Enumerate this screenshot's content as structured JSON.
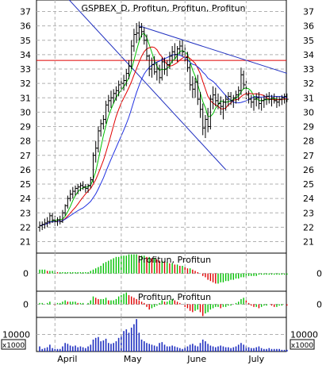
{
  "chart_data": [
    {
      "type": "ohlc",
      "title": "GSPBEX_D, Profitun, Profitun, Profitun",
      "x_ticks": [
        "April",
        "May",
        "June",
        "July"
      ],
      "y_ticks": [
        "21",
        "22",
        "23",
        "24",
        "25",
        "26",
        "27",
        "28",
        "29",
        "30",
        "31",
        "32",
        "33",
        "34",
        "35",
        "36",
        "37"
      ],
      "ylim": [
        20.2,
        37.8
      ],
      "bar_count": 98,
      "price_ohlc": [
        [
          22.0,
          22.4,
          21.7,
          22.1
        ],
        [
          22.1,
          22.4,
          21.8,
          22.2
        ],
        [
          22.2,
          22.6,
          21.9,
          22.3
        ],
        [
          22.3,
          22.7,
          22.0,
          22.4
        ],
        [
          22.4,
          23.0,
          22.2,
          22.8
        ],
        [
          22.8,
          23.0,
          22.3,
          22.5
        ],
        [
          22.5,
          22.8,
          22.1,
          22.4
        ],
        [
          22.4,
          22.7,
          22.1,
          22.5
        ],
        [
          22.5,
          22.8,
          22.2,
          22.4
        ],
        [
          22.4,
          23.2,
          22.3,
          23.0
        ],
        [
          23.0,
          23.6,
          22.8,
          23.5
        ],
        [
          23.5,
          24.2,
          23.3,
          24.0
        ],
        [
          24.0,
          24.6,
          23.8,
          24.3
        ],
        [
          24.3,
          24.8,
          24.0,
          24.5
        ],
        [
          24.5,
          24.9,
          24.2,
          24.7
        ],
        [
          24.7,
          25.0,
          24.3,
          24.8
        ],
        [
          24.8,
          25.1,
          24.5,
          24.9
        ],
        [
          24.9,
          25.2,
          24.6,
          24.8
        ],
        [
          24.8,
          25.0,
          24.4,
          24.7
        ],
        [
          24.7,
          25.0,
          24.4,
          24.9
        ],
        [
          24.9,
          25.5,
          24.7,
          25.3
        ],
        [
          25.3,
          27.2,
          25.1,
          27.0
        ],
        [
          27.0,
          28.0,
          26.5,
          27.5
        ],
        [
          27.5,
          29.0,
          27.2,
          28.7
        ],
        [
          28.7,
          29.5,
          28.3,
          29.2
        ],
        [
          29.2,
          29.8,
          28.8,
          29.5
        ],
        [
          29.5,
          30.8,
          29.2,
          30.5
        ],
        [
          30.5,
          31.2,
          30.0,
          30.8
        ],
        [
          30.8,
          31.5,
          30.3,
          31.0
        ],
        [
          31.0,
          31.6,
          30.6,
          31.3
        ],
        [
          31.3,
          31.8,
          30.8,
          31.5
        ],
        [
          31.5,
          32.2,
          31.1,
          31.9
        ],
        [
          31.9,
          32.4,
          31.4,
          32.0
        ],
        [
          32.0,
          32.6,
          31.5,
          32.2
        ],
        [
          32.2,
          33.0,
          31.8,
          32.7
        ],
        [
          32.7,
          33.6,
          32.3,
          33.2
        ],
        [
          33.2,
          35.0,
          33.0,
          34.6
        ],
        [
          34.6,
          35.8,
          34.2,
          35.4
        ],
        [
          35.4,
          36.2,
          34.8,
          35.5
        ],
        [
          35.5,
          36.3,
          35.0,
          35.9
        ],
        [
          35.9,
          36.2,
          35.2,
          35.6
        ],
        [
          35.6,
          35.9,
          34.7,
          35.0
        ],
        [
          35.0,
          35.4,
          33.6,
          33.9
        ],
        [
          33.9,
          34.0,
          32.5,
          33.0
        ],
        [
          33.0,
          33.8,
          32.4,
          33.3
        ],
        [
          33.3,
          33.9,
          32.6,
          32.8
        ],
        [
          32.8,
          33.5,
          32.2,
          33.0
        ],
        [
          33.0,
          33.3,
          32.0,
          32.4
        ],
        [
          32.4,
          33.8,
          32.2,
          33.5
        ],
        [
          33.5,
          33.8,
          32.6,
          33.0
        ],
        [
          33.0,
          33.6,
          32.5,
          33.3
        ],
        [
          33.3,
          34.2,
          33.0,
          33.9
        ],
        [
          33.9,
          34.6,
          33.4,
          34.2
        ],
        [
          34.2,
          34.8,
          33.7,
          34.0
        ],
        [
          34.0,
          34.6,
          33.5,
          34.4
        ],
        [
          34.4,
          35.0,
          34.0,
          34.6
        ],
        [
          34.6,
          35.0,
          33.9,
          34.2
        ],
        [
          34.2,
          34.7,
          33.5,
          33.8
        ],
        [
          33.8,
          34.2,
          32.8,
          33.1
        ],
        [
          33.1,
          33.4,
          31.5,
          31.9
        ],
        [
          31.9,
          32.5,
          31.0,
          31.6
        ],
        [
          31.6,
          32.4,
          31.0,
          32.1
        ],
        [
          32.1,
          32.6,
          30.5,
          30.9
        ],
        [
          30.9,
          31.4,
          29.6,
          30.2
        ],
        [
          30.2,
          30.6,
          28.4,
          28.9
        ],
        [
          28.9,
          29.8,
          28.2,
          29.5
        ],
        [
          29.5,
          30.3,
          28.6,
          29.0
        ],
        [
          29.0,
          31.2,
          28.8,
          30.9
        ],
        [
          30.9,
          31.8,
          30.2,
          31.2
        ],
        [
          31.2,
          31.7,
          30.4,
          30.8
        ],
        [
          30.8,
          31.3,
          30.2,
          30.6
        ],
        [
          30.6,
          31.1,
          29.8,
          30.4
        ],
        [
          30.4,
          30.9,
          29.5,
          30.7
        ],
        [
          30.7,
          31.2,
          30.1,
          30.9
        ],
        [
          30.9,
          31.4,
          30.4,
          31.1
        ],
        [
          31.1,
          31.4,
          30.5,
          30.8
        ],
        [
          30.8,
          31.2,
          30.3,
          31.0
        ],
        [
          31.0,
          31.5,
          30.6,
          31.2
        ],
        [
          31.2,
          31.8,
          30.8,
          31.5
        ],
        [
          31.5,
          33.1,
          31.2,
          32.6
        ],
        [
          32.6,
          32.9,
          31.6,
          31.9
        ],
        [
          31.9,
          32.2,
          30.9,
          31.2
        ],
        [
          31.2,
          31.5,
          30.6,
          30.9
        ],
        [
          30.9,
          31.2,
          30.3,
          30.7
        ],
        [
          30.7,
          31.1,
          30.1,
          30.9
        ],
        [
          30.9,
          31.3,
          30.4,
          31.0
        ],
        [
          31.0,
          31.4,
          30.2,
          30.6
        ],
        [
          30.6,
          31.0,
          30.1,
          30.8
        ],
        [
          30.8,
          31.2,
          30.3,
          30.9
        ],
        [
          30.9,
          31.3,
          30.5,
          31.1
        ],
        [
          31.1,
          31.4,
          30.6,
          30.9
        ],
        [
          30.9,
          31.2,
          30.4,
          31.0
        ],
        [
          31.0,
          31.3,
          30.6,
          30.8
        ],
        [
          30.8,
          31.1,
          30.3,
          30.7
        ],
        [
          30.7,
          31.1,
          30.4,
          30.9
        ],
        [
          30.9,
          31.2,
          30.5,
          31.0
        ],
        [
          31.0,
          31.3,
          30.6,
          31.1
        ],
        [
          31.1,
          31.3,
          30.7,
          30.9
        ]
      ],
      "horizontal_line": {
        "value": 33.6,
        "color": "#e00000"
      },
      "trendlines": [
        {
          "from": [
            9,
            38.3
          ],
          "to": [
            73,
            26.0
          ],
          "color": "#2030c0"
        },
        {
          "from": [
            39,
            36.0
          ],
          "to": [
            97,
            32.7
          ],
          "color": "#2030c0"
        }
      ],
      "moving_averages": [
        {
          "period": 5,
          "color": "#00c000"
        },
        {
          "period": 10,
          "color": "#e00000"
        },
        {
          "period": 18,
          "color": "#2030e0"
        }
      ]
    },
    {
      "type": "histogram",
      "title": "Profitun, Profitun",
      "y_ticks": [
        "0"
      ],
      "ylim": [
        -1.4,
        1.6
      ],
      "values": [
        0.3,
        0.3,
        0.3,
        0.2,
        0.2,
        0.2,
        0.2,
        0.1,
        0.1,
        0.1,
        0.1,
        0.1,
        0.1,
        0.1,
        0.1,
        0.1,
        0.1,
        0.1,
        0.1,
        0.1,
        0.2,
        0.3,
        0.4,
        0.5,
        0.6,
        0.8,
        0.9,
        1.0,
        1.1,
        1.2,
        1.3,
        1.3,
        1.4,
        1.4,
        1.4,
        1.5,
        1.5,
        1.5,
        1.5,
        1.4,
        1.4,
        1.4,
        1.3,
        1.3,
        1.2,
        1.2,
        1.1,
        1.0,
        1.0,
        0.9,
        0.9,
        0.8,
        0.8,
        0.7,
        0.7,
        0.6,
        0.6,
        0.5,
        0.4,
        0.4,
        0.3,
        0.2,
        0.1,
        0.0,
        -0.2,
        -0.3,
        -0.5,
        -0.6,
        -0.7,
        -0.8,
        -0.8,
        -0.7,
        -0.7,
        -0.6,
        -0.6,
        -0.5,
        -0.5,
        -0.4,
        -0.4,
        -0.3,
        -0.3,
        -0.3,
        -0.2,
        -0.2,
        -0.2,
        -0.2,
        -0.1,
        -0.1,
        -0.1,
        -0.1,
        -0.1,
        -0.1,
        -0.1,
        -0.1,
        -0.1,
        -0.1,
        -0.1,
        -0.1
      ],
      "colors": {
        "rising": "#00c000",
        "falling": "#e00000"
      }
    },
    {
      "type": "histogram",
      "title": "Profitun, Profitun",
      "y_ticks": [
        "0"
      ],
      "ylim": [
        -1.0,
        1.0
      ],
      "values": [
        0.1,
        0.1,
        0.0,
        0.1,
        0.2,
        0.0,
        -0.1,
        0.1,
        0.1,
        0.2,
        0.3,
        0.2,
        0.2,
        0.2,
        0.2,
        0.1,
        0.1,
        0.1,
        0.0,
        0.1,
        0.3,
        0.6,
        0.5,
        0.4,
        0.4,
        0.4,
        0.5,
        0.3,
        0.3,
        0.3,
        0.4,
        0.6,
        0.7,
        0.8,
        0.9,
        0.7,
        0.6,
        0.5,
        0.4,
        0.3,
        0.2,
        0.1,
        -0.2,
        -0.4,
        -0.3,
        -0.2,
        -0.1,
        0.1,
        0.3,
        0.2,
        0.2,
        0.3,
        0.4,
        0.3,
        0.2,
        0.1,
        0.0,
        -0.2,
        -0.3,
        -0.5,
        -0.6,
        -0.5,
        -0.4,
        -0.6,
        -0.9,
        -0.7,
        -0.6,
        -0.4,
        -0.3,
        -0.2,
        -0.2,
        -0.3,
        -0.2,
        -0.2,
        -0.1,
        -0.1,
        0.0,
        0.1,
        0.2,
        0.4,
        0.5,
        0.3,
        0.1,
        -0.1,
        -0.2,
        -0.2,
        -0.3,
        -0.2,
        -0.1,
        -0.1,
        0.0,
        -0.1,
        -0.2,
        -0.2,
        -0.1,
        -0.1,
        0.0,
        -0.1
      ],
      "colors": {
        "rising": "#00c000",
        "falling": "#e00000"
      }
    },
    {
      "type": "bar",
      "y_ticks": [
        "10000"
      ],
      "unit_label": "x1000",
      "ylim": [
        0,
        20000
      ],
      "values": [
        3000,
        1500,
        2000,
        2500,
        4000,
        2000,
        1500,
        1500,
        1500,
        3000,
        5000,
        4500,
        3500,
        3000,
        3500,
        2500,
        3000,
        2500,
        2000,
        3000,
        4000,
        7000,
        8000,
        8500,
        6000,
        6500,
        7500,
        5000,
        4500,
        5000,
        6000,
        8000,
        9500,
        12000,
        13000,
        11000,
        14000,
        16000,
        19000,
        11000,
        7000,
        6000,
        5000,
        4500,
        4000,
        3500,
        3000,
        5000,
        5500,
        4000,
        3000,
        3000,
        3500,
        3000,
        2500,
        2000,
        1500,
        2500,
        3000,
        4000,
        4500,
        3500,
        3000,
        5000,
        7000,
        6000,
        4500,
        3500,
        3000,
        2500,
        3000,
        3500,
        3000,
        2500,
        2500,
        2000,
        2500,
        3000,
        4000,
        5000,
        4000,
        3000,
        2500,
        2000,
        2000,
        2500,
        3000,
        2000,
        1500,
        1500,
        2000,
        1500,
        1500,
        1500,
        1500,
        1000,
        1000,
        1000
      ],
      "color": "#2030c0"
    }
  ]
}
